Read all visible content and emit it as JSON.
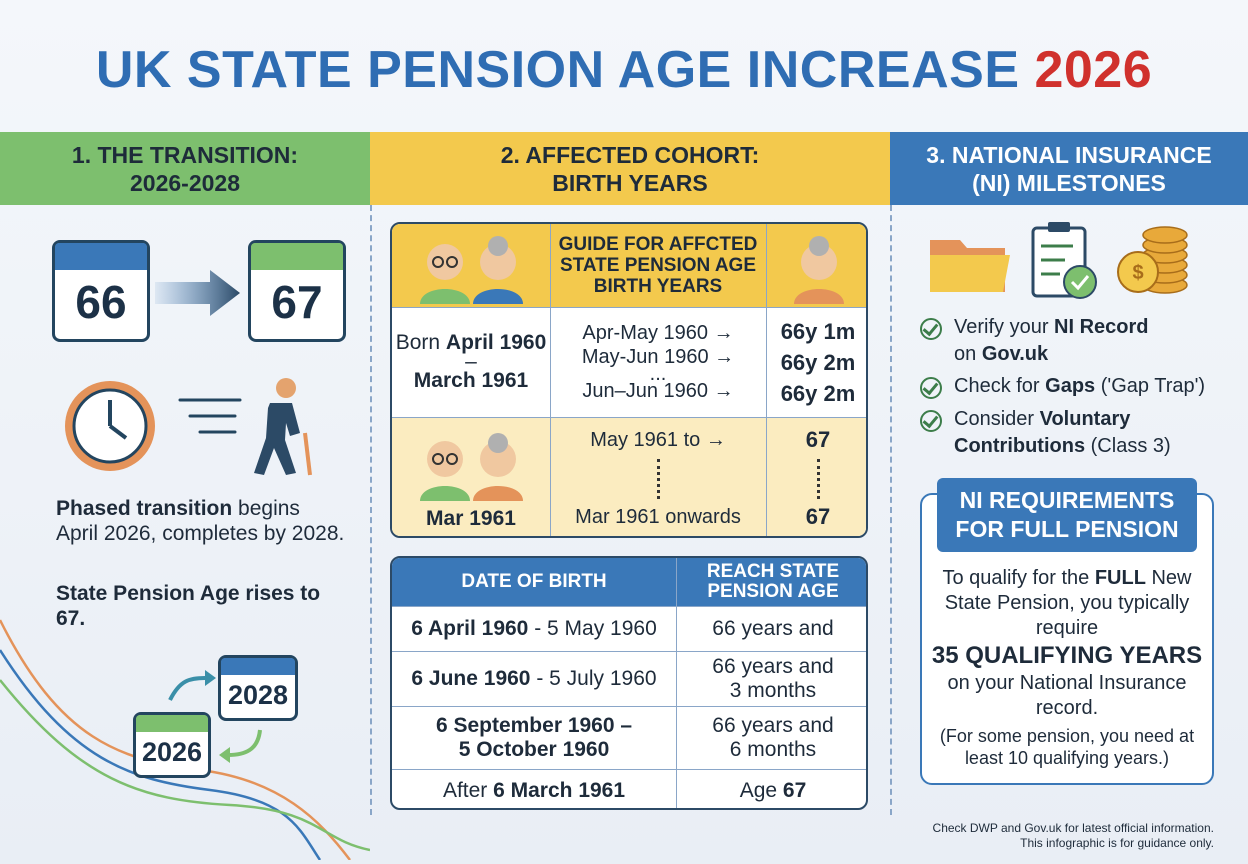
{
  "title": {
    "main": "UK STATE PENSION AGE INCREASE",
    "year": "2026"
  },
  "sections": [
    {
      "heading": [
        "1. THE TRANSITION:",
        "2026-2028"
      ],
      "calendar_from": "66",
      "calendar_to": "67",
      "text1": [
        "Phased transition",
        " begins April 2026, completes by 2028."
      ],
      "text2": "State Pension Age rises to 67.",
      "calendar_end": "2028",
      "calendar_start": "2026"
    },
    {
      "heading": [
        "2. AFFECTED COHORT:",
        "BIRTH YEARS"
      ],
      "guide": {
        "title": "GUIDE FOR AFFCTED STATE PENSION AGE BIRTH YEARS",
        "rows": [
          {
            "cohort": [
              "Born ",
              "April 1960",
              "–",
              "March 1961"
            ],
            "ranges": [
              "Apr-May 1960 →",
              "May-Jun 1960 →",
              "...",
              "Jun–Jun 1960 →"
            ],
            "ages": [
              "66y 1m",
              "66y 2m",
              "66y 2m"
            ]
          },
          {
            "cohort": "Mar 1961",
            "ranges": [
              "May 1961 to →",
              "Mar 1961 onwards"
            ],
            "ages": [
              "67",
              "67"
            ]
          }
        ]
      },
      "dates": {
        "headers": [
          "DATE OF BIRTH",
          "REACH STATE PENSION AGE"
        ],
        "rows": [
          [
            [
              "6 April 1960",
              " - 5 May 1960"
            ],
            [
              "66 years and"
            ]
          ],
          [
            [
              "6 June 1960",
              " - 5 July 1960"
            ],
            [
              "66 years and",
              "3 months"
            ]
          ],
          [
            [
              "6 September 1960 –",
              "5 October 1960"
            ],
            [
              "66 years and",
              "6 months"
            ]
          ],
          [
            [
              "After ",
              "6 March 1961"
            ],
            [
              "Age ",
              "67"
            ]
          ]
        ]
      }
    },
    {
      "heading": [
        "3. NATIONAL INSURANCE",
        "(NI) MILESTONES"
      ],
      "checks": [
        [
          "Verify your ",
          "NI Record",
          "on ",
          "Gov.uk"
        ],
        [
          "Check for ",
          "Gaps",
          " ('Gap Trap')"
        ],
        [
          "Consider ",
          "Voluntary",
          "Contributions",
          " (Class 3)"
        ]
      ],
      "box": {
        "title": "NI REQUIREMENTS FOR FULL PENSION",
        "body": [
          "To qualify for the ",
          "FULL",
          " New State Pension, you typically require",
          "35 QUALIFYING YEARS",
          "on your National Insurance record."
        ],
        "note": "(For some pension, you need at least 10 qualifying years.)"
      }
    }
  ],
  "footer": [
    "Check DWP and Gov.uk for latest official information.",
    "This infographic is for guidance only."
  ]
}
